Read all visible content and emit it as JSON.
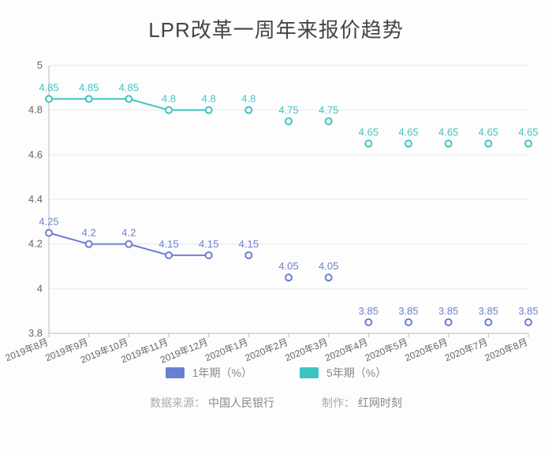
{
  "title": "LPR改革一周年来报价趋势",
  "chart": {
    "type": "line",
    "background_color": "#fdfdfd",
    "title_fontsize": 26,
    "title_color": "#444444",
    "ylim": [
      3.8,
      5.0
    ],
    "yticks": [
      3.8,
      4,
      4.2,
      4.4,
      4.6,
      4.8,
      5
    ],
    "ytick_labels": [
      "3.8",
      "4",
      "4.2",
      "4.4",
      "4.6",
      "4.8",
      "5"
    ],
    "ytick_fontsize": 13,
    "ytick_color": "#666666",
    "xlabel_fontsize": 12,
    "xlabel_color": "#666666",
    "xlabel_rotation": 22,
    "grid_color": "#e8e8e8",
    "axis_color": "#bcbcbc",
    "line_width": 2,
    "marker_radius": 4,
    "marker_fill": "#ffffff",
    "data_label_fontsize": 13,
    "categories": [
      "2019年8月",
      "2019年9月",
      "2019年10月",
      "2019年11月",
      "2019年12月",
      "2020年1月",
      "2020年2月",
      "2020年3月",
      "2020年4月",
      "2020年5月",
      "2020年6月",
      "2020年7月",
      "2020年8月"
    ],
    "series": [
      {
        "name": "1年期（%）",
        "color": "#6b7fd1",
        "values": [
          4.25,
          4.2,
          4.2,
          4.15,
          4.15,
          4.15,
          4.05,
          4.05,
          3.85,
          3.85,
          3.85,
          3.85,
          3.85
        ],
        "labels": [
          "4.25",
          "4.2",
          "4.2",
          "4.15",
          "4.15",
          "4.15",
          "4.05",
          "4.05",
          "3.85",
          "3.85",
          "3.85",
          "3.85",
          "3.85"
        ],
        "connect_until_index": 4
      },
      {
        "name": "5年期（%）",
        "color": "#3cc4c4",
        "values": [
          4.85,
          4.85,
          4.85,
          4.8,
          4.8,
          4.8,
          4.75,
          4.75,
          4.65,
          4.65,
          4.65,
          4.65,
          4.65
        ],
        "labels": [
          "4.85",
          "4.85",
          "4.85",
          "4.8",
          "4.8",
          "4.8",
          "4.75",
          "4.75",
          "4.65",
          "4.65",
          "4.65",
          "4.65",
          "4.65"
        ],
        "connect_until_index": 4
      }
    ],
    "legend": {
      "swatch_width": 24,
      "swatch_height": 14,
      "fontsize": 14,
      "text_color": "#888888"
    }
  },
  "footer": {
    "source_label": "数据来源：",
    "source_value": "中国人民银行",
    "credit_label": "制作：",
    "credit_value": "红网时刻",
    "fontsize": 14,
    "label_color": "#aaaaaa",
    "value_color": "#888888"
  }
}
